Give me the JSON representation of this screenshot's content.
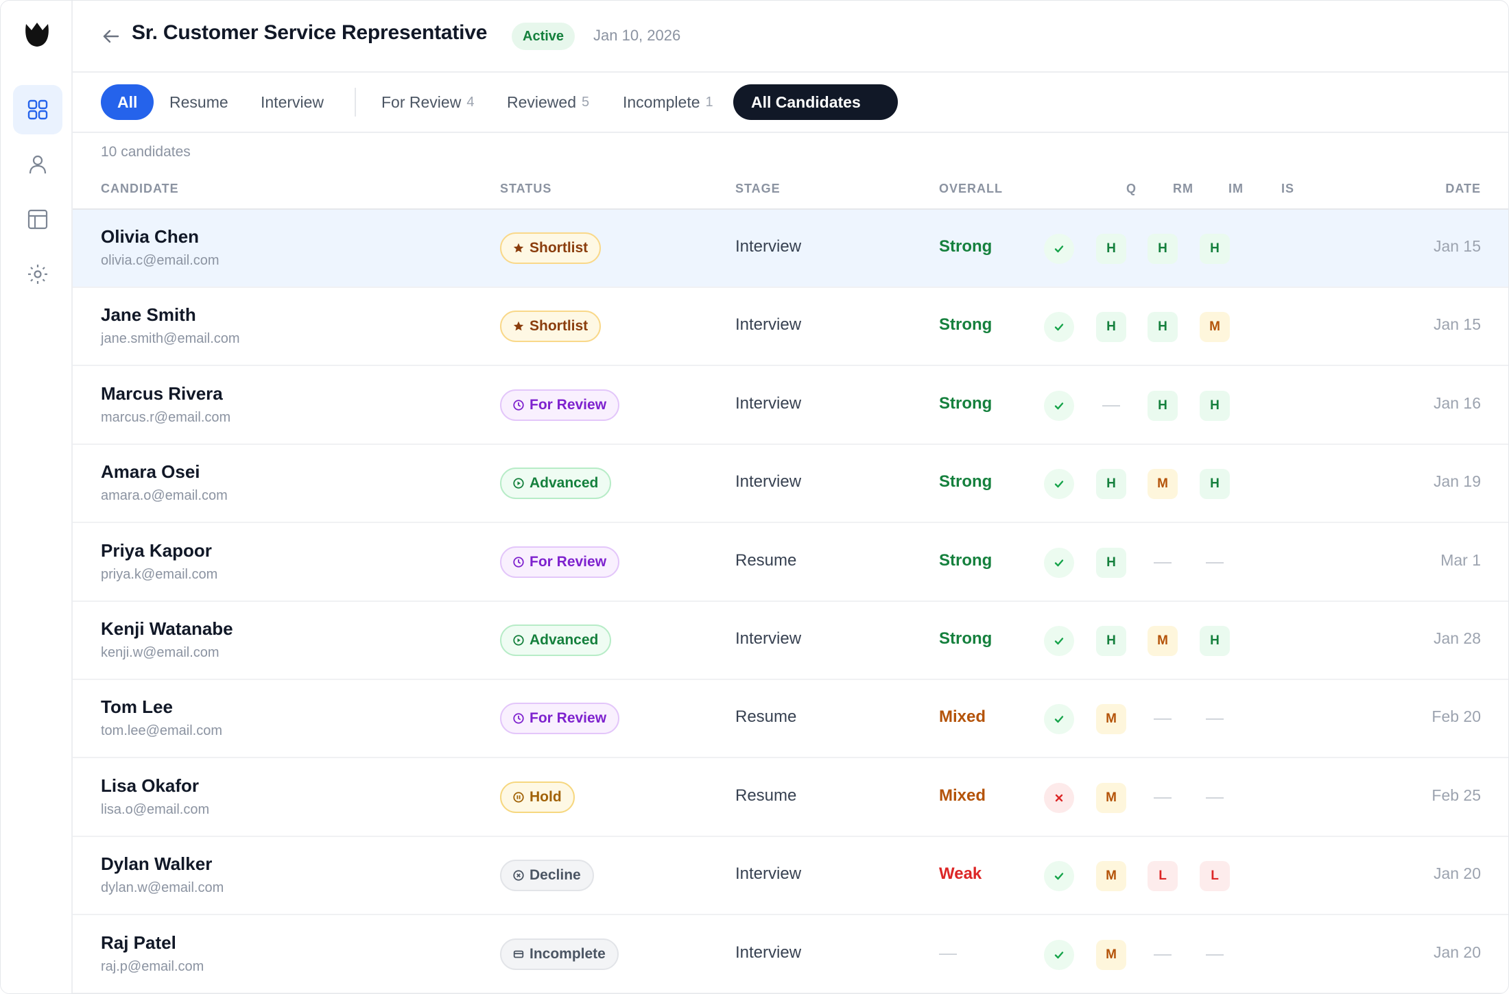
{
  "header": {
    "title": "Sr. Customer Service Representative",
    "status": "Active",
    "date": "Jan 10, 2026"
  },
  "tabs": [
    {
      "label": "All",
      "count": ""
    },
    {
      "label": "Resume",
      "count": ""
    },
    {
      "label": "Interview",
      "count": ""
    },
    {
      "label": "For Review",
      "count": "4"
    },
    {
      "label": "Reviewed",
      "count": "5"
    },
    {
      "label": "Incomplete",
      "count": "1"
    },
    {
      "label": "All Candidates",
      "count": ""
    }
  ],
  "count_text": "10 candidates",
  "columns": {
    "candidate": "CANDIDATE",
    "status": "STATUS",
    "stage": "STAGE",
    "overall": "OVERALL",
    "q": "Q",
    "rm": "RM",
    "im": "IM",
    "is": "IS",
    "date": "DATE"
  },
  "rows": [
    {
      "name": "Olivia Chen",
      "email": "olivia.c@email.com",
      "status": "Shortlist",
      "status_type": "shortlist",
      "stage": "Interview",
      "overall": "Strong",
      "q": "ok",
      "rm": "H",
      "im": "H",
      "is": "H",
      "date": "Jan 15",
      "selected": true
    },
    {
      "name": "Jane Smith",
      "email": "jane.smith@email.com",
      "status": "Shortlist",
      "status_type": "shortlist",
      "stage": "Interview",
      "overall": "Strong",
      "q": "ok",
      "rm": "H",
      "im": "H",
      "is": "M",
      "date": "Jan 15"
    },
    {
      "name": "Marcus Rivera",
      "email": "marcus.r@email.com",
      "status": "For Review",
      "status_type": "review",
      "stage": "Interview",
      "overall": "Strong",
      "q": "ok",
      "rm": "",
      "im": "H",
      "is": "H",
      "date": "Jan 16"
    },
    {
      "name": "Amara Osei",
      "email": "amara.o@email.com",
      "status": "Advanced",
      "status_type": "advanced",
      "stage": "Interview",
      "overall": "Strong",
      "q": "ok",
      "rm": "H",
      "im": "M",
      "is": "H",
      "date": "Jan 19"
    },
    {
      "name": "Priya Kapoor",
      "email": "priya.k@email.com",
      "status": "For Review",
      "status_type": "review",
      "stage": "Resume",
      "overall": "Strong",
      "q": "ok",
      "rm": "H",
      "im": "",
      "is": "",
      "date": "Mar 1"
    },
    {
      "name": "Kenji Watanabe",
      "email": "kenji.w@email.com",
      "status": "Advanced",
      "status_type": "advanced",
      "stage": "Interview",
      "overall": "Strong",
      "q": "ok",
      "rm": "H",
      "im": "M",
      "is": "H",
      "date": "Jan 28"
    },
    {
      "name": "Tom Lee",
      "email": "tom.lee@email.com",
      "status": "For Review",
      "status_type": "review",
      "stage": "Resume",
      "overall": "Mixed",
      "q": "ok",
      "rm": "M",
      "im": "",
      "is": "",
      "date": "Feb 20"
    },
    {
      "name": "Lisa Okafor",
      "email": "lisa.o@email.com",
      "status": "Hold",
      "status_type": "hold",
      "stage": "Resume",
      "overall": "Mixed",
      "q": "x",
      "rm": "M",
      "im": "",
      "is": "",
      "date": "Feb 25"
    },
    {
      "name": "Dylan Walker",
      "email": "dylan.w@email.com",
      "status": "Decline",
      "status_type": "decline",
      "stage": "Interview",
      "overall": "Weak",
      "q": "ok",
      "rm": "M",
      "im": "L",
      "is": "L",
      "date": "Jan 20"
    },
    {
      "name": "Raj Patel",
      "email": "raj.p@email.com",
      "status": "Incomplete",
      "status_type": "incomplete",
      "stage": "Interview",
      "overall": "",
      "q": "ok",
      "rm": "M",
      "im": "",
      "is": "",
      "date": "Jan 20"
    }
  ],
  "icons": {
    "logo": "tulip-logo-icon",
    "nav": [
      "grid-icon",
      "person-icon",
      "layout-icon",
      "settings-icon"
    ],
    "back": "arrow-left-icon"
  },
  "colors": {
    "accent": "#2563eb",
    "dark": "#111827",
    "strong": "#15803d",
    "mixed": "#b45309",
    "weak": "#dc2626"
  }
}
